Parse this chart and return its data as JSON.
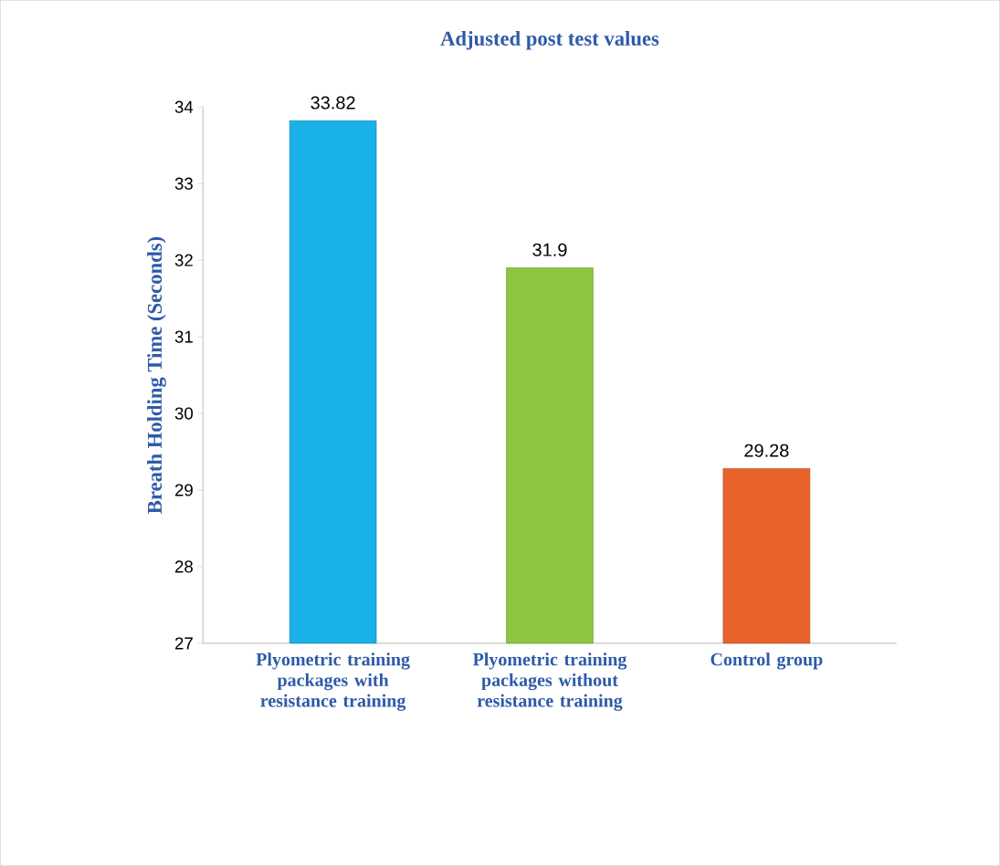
{
  "chart_data": {
    "type": "bar",
    "title": "Adjusted post test values",
    "ylabel": "Breath Holding Time (Seconds)",
    "categories": [
      "Plyometric training packages with resistance training",
      "Plyometric training packages without resistance training",
      "Control group"
    ],
    "values": [
      33.82,
      31.9,
      29.28
    ],
    "colors": [
      "#1ab0e8",
      "#8dc63f",
      "#e8622a"
    ],
    "ylim": [
      27,
      34
    ],
    "yticks": [
      27,
      28,
      29,
      30,
      31,
      32,
      33,
      34
    ],
    "data_labels": true
  }
}
